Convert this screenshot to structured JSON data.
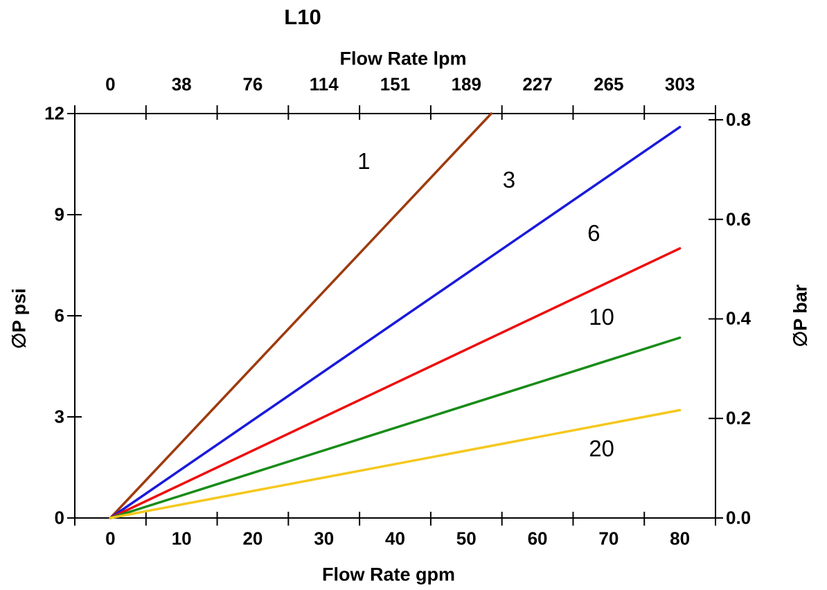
{
  "chart_data": {
    "type": "line",
    "title": "L10",
    "x_axis": {
      "top_label": "Flow Rate lpm",
      "bottom_label": "Flow Rate gpm",
      "bottom_tick_labels": [
        "0",
        "10",
        "20",
        "30",
        "40",
        "50",
        "60",
        "70",
        "80"
      ],
      "top_tick_labels": [
        "0",
        "38",
        "76",
        "114",
        "151",
        "189",
        "227",
        "265",
        "303"
      ],
      "tick_label_positions_gpm": [
        0,
        10,
        20,
        30,
        40,
        50,
        60,
        70,
        80
      ],
      "tick_mark_positions_gpm": [
        -5,
        5,
        15,
        25,
        35,
        45,
        55,
        65,
        75,
        85
      ],
      "range_gpm": [
        -5,
        85
      ]
    },
    "y_axis_left": {
      "label": "∅P psi",
      "tick_labels": [
        "0",
        "3",
        "6",
        "9",
        "12"
      ],
      "tick_values": [
        0,
        3,
        6,
        9,
        12
      ],
      "range": [
        0,
        12
      ]
    },
    "y_axis_right": {
      "label": "∅P bar",
      "tick_labels": [
        "0.0",
        "0.2",
        "0.4",
        "0.6",
        "0.8"
      ],
      "tick_values": [
        0,
        0.2,
        0.4,
        0.6,
        0.8
      ],
      "range": [
        0,
        0.8125
      ]
    },
    "grid": false,
    "legend": "inline-curve-labels",
    "series": [
      {
        "name": "1",
        "label": "1",
        "color": "#9E3A0E",
        "points": [
          [
            0,
            0
          ],
          [
            53.5,
            12
          ]
        ],
        "label_pos_gpm_psi": [
          35.6,
          10.58
        ]
      },
      {
        "name": "3",
        "label": "3",
        "color": "#1A1ADB",
        "points": [
          [
            0,
            0
          ],
          [
            80,
            11.6
          ]
        ],
        "label_pos_gpm_psi": [
          56.0,
          10.03
        ]
      },
      {
        "name": "6",
        "label": "6",
        "color": "#EE0D0D",
        "points": [
          [
            0,
            0
          ],
          [
            80,
            8.0
          ]
        ],
        "label_pos_gpm_psi": [
          67.9,
          8.45
        ]
      },
      {
        "name": "10",
        "label": "10",
        "color": "#188C18",
        "points": [
          [
            0,
            0
          ],
          [
            80,
            5.35
          ]
        ],
        "label_pos_gpm_psi": [
          69.0,
          5.96
        ]
      },
      {
        "name": "20",
        "label": "20",
        "color": "#F5C81E",
        "points": [
          [
            0,
            0
          ],
          [
            80,
            3.2
          ]
        ],
        "label_pos_gpm_psi": [
          69.0,
          2.05
        ]
      }
    ],
    "frame_color": "#000000",
    "background_color": "#ffffff"
  }
}
